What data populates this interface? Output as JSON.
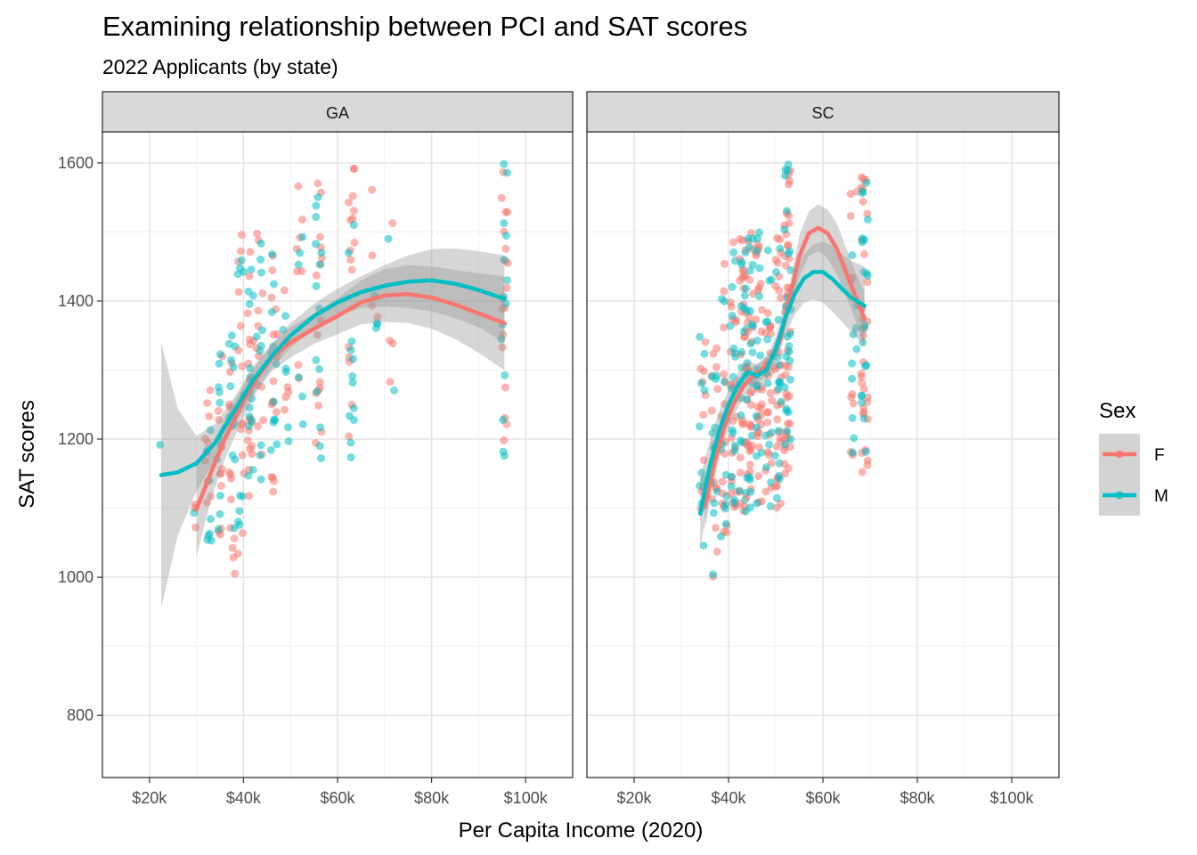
{
  "chart_data": {
    "type": "scatter",
    "title": "Examining relationship between PCI and SAT scores",
    "subtitle": "2022 Applicants (by state)",
    "xlabel": "Per Capita Income (2020)",
    "ylabel": "SAT scores",
    "xlim": [
      10000,
      110000
    ],
    "ylim": [
      710,
      1645
    ],
    "x_ticks": [
      20000,
      40000,
      60000,
      80000,
      100000
    ],
    "x_tick_labels": [
      "$20k",
      "$40k",
      "$60k",
      "$80k",
      "$100k"
    ],
    "y_ticks": [
      800,
      1000,
      1200,
      1400,
      1600
    ],
    "y_tick_labels": [
      "800",
      "1000",
      "1200",
      "1400",
      "1600"
    ],
    "grid": true,
    "legend": {
      "title": "Sex",
      "position": "right",
      "entries": [
        {
          "label": "F",
          "color": "#F8766D"
        },
        {
          "label": "M",
          "color": "#00BFC4"
        }
      ]
    },
    "facets": [
      {
        "label": "GA",
        "smooth": {
          "F": {
            "x": [
              30000,
              33000,
              36000,
              40000,
              43000,
              46000,
              50000,
              55000,
              60000,
              65000,
              70000,
              75000,
              80000,
              85000,
              90000,
              95500
            ],
            "y": [
              1098,
              1150,
              1200,
              1255,
              1290,
              1318,
              1340,
              1360,
              1378,
              1398,
              1408,
              1410,
              1405,
              1395,
              1382,
              1368
            ],
            "lower": [
              1030,
              1110,
              1170,
              1232,
              1270,
              1298,
              1318,
              1338,
              1352,
              1366,
              1370,
              1368,
              1360,
              1345,
              1325,
              1300
            ],
            "upper": [
              1165,
              1190,
              1230,
              1278,
              1310,
              1338,
              1362,
              1382,
              1404,
              1430,
              1446,
              1452,
              1450,
              1445,
              1440,
              1436
            ]
          },
          "M": {
            "x": [
              22500,
              26000,
              30000,
              34000,
              38000,
              42000,
              46000,
              50000,
              55000,
              60000,
              65000,
              70000,
              75000,
              80000,
              85000,
              90000,
              95500
            ],
            "y": [
              1148,
              1152,
              1165,
              1195,
              1240,
              1285,
              1320,
              1350,
              1378,
              1398,
              1413,
              1422,
              1428,
              1430,
              1425,
              1416,
              1403
            ],
            "lower": [
              955,
              1060,
              1125,
              1170,
              1220,
              1265,
              1302,
              1332,
              1360,
              1378,
              1390,
              1392,
              1390,
              1385,
              1375,
              1362,
              1340
            ],
            "upper": [
              1340,
              1244,
              1205,
              1222,
              1260,
              1305,
              1338,
              1368,
              1396,
              1418,
              1436,
              1452,
              1466,
              1475,
              1476,
              1472,
              1466
            ]
          }
        }
      },
      {
        "label": "SC",
        "smooth": {
          "F": {
            "x": [
              35000,
              37000,
              39000,
              41000,
              43000,
              45000,
              47000,
              49000,
              51000,
              53000,
              55000,
              57000,
              59000,
              61000,
              63000,
              65000,
              67000,
              68800
            ],
            "y": [
              1102,
              1165,
              1215,
              1250,
              1275,
              1290,
              1300,
              1315,
              1345,
              1405,
              1465,
              1498,
              1506,
              1498,
              1475,
              1440,
              1405,
              1375
            ],
            "lower": [
              1070,
              1140,
              1195,
              1232,
              1258,
              1275,
              1286,
              1302,
              1330,
              1385,
              1435,
              1465,
              1472,
              1462,
              1438,
              1405,
              1370,
              1335
            ],
            "upper": [
              1135,
              1190,
              1235,
              1268,
              1292,
              1305,
              1314,
              1328,
              1360,
              1425,
              1495,
              1530,
              1540,
              1532,
              1512,
              1475,
              1440,
              1415
            ]
          },
          "M": {
            "x": [
              34000,
              36000,
              38000,
              40000,
              42000,
              44000,
              46000,
              48000,
              50000,
              52000,
              54000,
              56000,
              58000,
              60000,
              62000,
              64000,
              66000,
              68800
            ],
            "y": [
              1092,
              1160,
              1212,
              1250,
              1278,
              1297,
              1292,
              1300,
              1330,
              1375,
              1410,
              1433,
              1442,
              1442,
              1432,
              1418,
              1405,
              1393
            ],
            "lower": [
              1040,
              1122,
              1185,
              1228,
              1260,
              1280,
              1276,
              1285,
              1312,
              1350,
              1380,
              1398,
              1402,
              1398,
              1385,
              1370,
              1355,
              1335
            ],
            "upper": [
              1145,
              1198,
              1240,
              1272,
              1296,
              1314,
              1308,
              1315,
              1348,
              1400,
              1440,
              1468,
              1482,
              1486,
              1480,
              1468,
              1458,
              1450
            ]
          }
        }
      }
    ]
  }
}
